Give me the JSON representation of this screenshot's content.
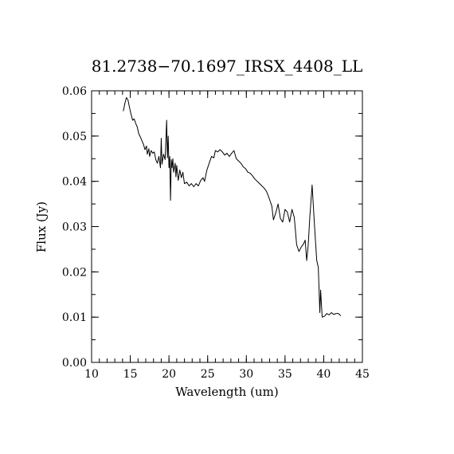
{
  "chart_data": {
    "type": "line",
    "title": "81.2738−70.1697_IRSX_4408_LL",
    "xlabel": "Wavelength (um)",
    "ylabel": "Flux (Jy)",
    "xlim": [
      10,
      45
    ],
    "ylim": [
      0,
      0.06
    ],
    "x_ticks": [
      10,
      15,
      20,
      25,
      30,
      35,
      40,
      45
    ],
    "x_tick_labels": [
      "10",
      "15",
      "20",
      "25",
      "30",
      "35",
      "40",
      "45"
    ],
    "y_ticks": [
      0,
      0.01,
      0.02,
      0.03,
      0.04,
      0.05,
      0.06
    ],
    "y_tick_labels": [
      "0.00",
      "0.01",
      "0.02",
      "0.03",
      "0.04",
      "0.05",
      "0.06"
    ],
    "x_minor_step": 1,
    "y_minor_step": 0.005,
    "grid": false,
    "series": [
      {
        "points": [
          [
            14.1,
            0.0555
          ],
          [
            14.3,
            0.0572
          ],
          [
            14.5,
            0.0585
          ],
          [
            14.7,
            0.058
          ],
          [
            14.9,
            0.0563
          ],
          [
            15.1,
            0.0548
          ],
          [
            15.3,
            0.0535
          ],
          [
            15.5,
            0.0538
          ],
          [
            15.7,
            0.0528
          ],
          [
            15.9,
            0.052
          ],
          [
            16.1,
            0.0505
          ],
          [
            16.3,
            0.0498
          ],
          [
            16.5,
            0.049
          ],
          [
            16.7,
            0.0482
          ],
          [
            16.9,
            0.047
          ],
          [
            17.1,
            0.0478
          ],
          [
            17.2,
            0.046
          ],
          [
            17.4,
            0.0472
          ],
          [
            17.5,
            0.0455
          ],
          [
            17.7,
            0.0468
          ],
          [
            17.9,
            0.0462
          ],
          [
            18.1,
            0.0465
          ],
          [
            18.3,
            0.0448
          ],
          [
            18.5,
            0.044
          ],
          [
            18.7,
            0.0455
          ],
          [
            18.9,
            0.043
          ],
          [
            19.0,
            0.0495
          ],
          [
            19.1,
            0.0438
          ],
          [
            19.3,
            0.046
          ],
          [
            19.5,
            0.0448
          ],
          [
            19.7,
            0.0535
          ],
          [
            19.8,
            0.0452
          ],
          [
            19.9,
            0.05
          ],
          [
            20.0,
            0.043
          ],
          [
            20.1,
            0.0455
          ],
          [
            20.2,
            0.0358
          ],
          [
            20.3,
            0.0448
          ],
          [
            20.4,
            0.043
          ],
          [
            20.5,
            0.045
          ],
          [
            20.6,
            0.042
          ],
          [
            20.8,
            0.044
          ],
          [
            20.9,
            0.041
          ],
          [
            21.0,
            0.0435
          ],
          [
            21.2,
            0.0402
          ],
          [
            21.4,
            0.0425
          ],
          [
            21.6,
            0.0408
          ],
          [
            21.8,
            0.042
          ],
          [
            22.0,
            0.0395
          ],
          [
            22.3,
            0.0398
          ],
          [
            22.6,
            0.039
          ],
          [
            22.9,
            0.0395
          ],
          [
            23.2,
            0.0388
          ],
          [
            23.5,
            0.0395
          ],
          [
            23.8,
            0.039
          ],
          [
            24.1,
            0.0402
          ],
          [
            24.4,
            0.0408
          ],
          [
            24.6,
            0.04
          ],
          [
            24.9,
            0.0425
          ],
          [
            25.2,
            0.044
          ],
          [
            25.5,
            0.0455
          ],
          [
            25.8,
            0.0452
          ],
          [
            26.0,
            0.0468
          ],
          [
            26.3,
            0.0465
          ],
          [
            26.6,
            0.047
          ],
          [
            26.9,
            0.0465
          ],
          [
            27.2,
            0.0458
          ],
          [
            27.5,
            0.0462
          ],
          [
            27.8,
            0.0455
          ],
          [
            28.1,
            0.0462
          ],
          [
            28.4,
            0.0468
          ],
          [
            28.7,
            0.045
          ],
          [
            29.0,
            0.0445
          ],
          [
            29.3,
            0.044
          ],
          [
            29.6,
            0.0432
          ],
          [
            29.9,
            0.0428
          ],
          [
            30.2,
            0.042
          ],
          [
            30.5,
            0.0418
          ],
          [
            30.8,
            0.0412
          ],
          [
            31.1,
            0.0405
          ],
          [
            31.4,
            0.04
          ],
          [
            31.7,
            0.0395
          ],
          [
            32.0,
            0.039
          ],
          [
            32.3,
            0.0385
          ],
          [
            32.6,
            0.0378
          ],
          [
            32.9,
            0.0365
          ],
          [
            33.1,
            0.0355
          ],
          [
            33.3,
            0.0345
          ],
          [
            33.5,
            0.0315
          ],
          [
            33.8,
            0.033
          ],
          [
            34.1,
            0.035
          ],
          [
            34.4,
            0.0318
          ],
          [
            34.7,
            0.031
          ],
          [
            35.0,
            0.0338
          ],
          [
            35.3,
            0.0332
          ],
          [
            35.6,
            0.031
          ],
          [
            35.9,
            0.0338
          ],
          [
            36.2,
            0.032
          ],
          [
            36.5,
            0.026
          ],
          [
            36.8,
            0.0245
          ],
          [
            37.1,
            0.0255
          ],
          [
            37.4,
            0.0262
          ],
          [
            37.6,
            0.027
          ],
          [
            37.8,
            0.0225
          ],
          [
            38.0,
            0.026
          ],
          [
            38.2,
            0.032
          ],
          [
            38.5,
            0.0392
          ],
          [
            38.8,
            0.0305
          ],
          [
            39.1,
            0.0225
          ],
          [
            39.3,
            0.021
          ],
          [
            39.5,
            0.011
          ],
          [
            39.6,
            0.016
          ],
          [
            39.8,
            0.01
          ],
          [
            40.1,
            0.0102
          ],
          [
            40.4,
            0.0108
          ],
          [
            40.7,
            0.0105
          ],
          [
            41.0,
            0.011
          ],
          [
            41.3,
            0.0106
          ],
          [
            41.6,
            0.0108
          ],
          [
            41.9,
            0.0108
          ],
          [
            42.2,
            0.0103
          ]
        ]
      }
    ]
  }
}
